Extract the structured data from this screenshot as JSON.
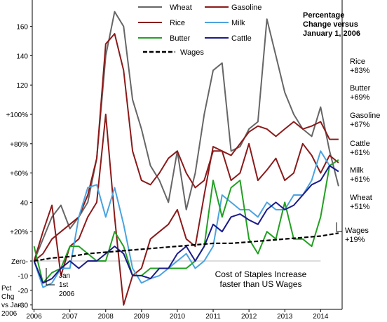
{
  "chart_data": {
    "type": "line",
    "title": "Percentage\nChange versus\nJanuary 1, 2006",
    "subtitle": "Cost of Staples Increase\nfaster than US Wages",
    "ylabel": "Pct\nChg\nvs Jan\n2006",
    "annotation_start": "Jan\n1st\n2006",
    "ylim": [
      -33,
      178
    ],
    "xlim": [
      2005.95,
      2014.6
    ],
    "grid": false,
    "legend_position": "top",
    "x_ticks": [
      {
        "label": "2006",
        "value": 2006.0
      },
      {
        "label": "2007",
        "value": 2007.0
      },
      {
        "label": "2008",
        "value": 2008.0
      },
      {
        "label": "2009",
        "value": 2009.0
      },
      {
        "label": "2010",
        "value": 2010.0
      },
      {
        "label": "2011",
        "value": 2011.0
      },
      {
        "label": "2012",
        "value": 2012.0
      },
      {
        "label": "2013",
        "value": 2013.0
      },
      {
        "label": "2014",
        "value": 2014.0
      }
    ],
    "y_ticks": [
      {
        "label": "160",
        "value": 160
      },
      {
        "label": "140",
        "value": 140
      },
      {
        "label": "120",
        "value": 120
      },
      {
        "label": "+100%",
        "value": 100
      },
      {
        "label": "+80%",
        "value": 80
      },
      {
        "label": "+60%",
        "value": 60
      },
      {
        "label": "40",
        "value": 40
      },
      {
        "label": "+20%",
        "value": 20
      },
      {
        "label": "Zero-",
        "value": 0
      },
      {
        "label": "-10",
        "value": -10
      },
      {
        "label": "-20",
        "value": -20
      },
      {
        "label": "-30",
        "value": -30
      }
    ],
    "series": [
      {
        "name": "Wheat",
        "color": "#666666",
        "dash": false,
        "width": 2,
        "end_label": "Wheat\n+51%",
        "x": [
          2006.0,
          2006.5,
          2006.75,
          2007.0,
          2007.25,
          2007.5,
          2007.75,
          2008.0,
          2008.25,
          2008.5,
          2008.75,
          2009.0,
          2009.25,
          2009.5,
          2009.75,
          2010.0,
          2010.25,
          2010.5,
          2010.75,
          2011.0,
          2011.25,
          2011.5,
          2011.75,
          2012.0,
          2012.25,
          2012.5,
          2012.75,
          2013.0,
          2013.25,
          2013.5,
          2013.75,
          2014.0,
          2014.25,
          2014.5
        ],
        "y": [
          0,
          30,
          38,
          22,
          30,
          40,
          70,
          140,
          170,
          160,
          110,
          90,
          65,
          55,
          40,
          75,
          35,
          60,
          100,
          130,
          135,
          75,
          78,
          90,
          95,
          165,
          140,
          115,
          100,
          90,
          85,
          105,
          75,
          51
        ]
      },
      {
        "name": "Rice",
        "color": "#8b1a1a",
        "dash": false,
        "width": 2,
        "end_label": "Rice\n+83%",
        "x": [
          2006.0,
          2006.25,
          2006.5,
          2006.75,
          2007.0,
          2007.25,
          2007.5,
          2007.75,
          2008.0,
          2008.25,
          2008.5,
          2008.75,
          2009.0,
          2009.25,
          2009.5,
          2009.75,
          2010.0,
          2010.25,
          2010.5,
          2010.75,
          2011.0,
          2011.25,
          2011.5,
          2011.75,
          2012.0,
          2012.25,
          2012.5,
          2012.75,
          2013.0,
          2013.25,
          2013.5,
          2013.75,
          2014.0,
          2014.25,
          2014.5
        ],
        "y": [
          0,
          5,
          15,
          20,
          25,
          30,
          45,
          70,
          148,
          155,
          130,
          75,
          55,
          52,
          60,
          70,
          75,
          60,
          50,
          55,
          75,
          75,
          72,
          80,
          88,
          92,
          90,
          85,
          90,
          95,
          90,
          92,
          95,
          83,
          83
        ]
      },
      {
        "name": "Gasoline",
        "color": "#8b1a1a",
        "dash": false,
        "width": 2,
        "end_label": "Gasoline\n+67%",
        "x": [
          2006.0,
          2006.25,
          2006.5,
          2006.75,
          2007.0,
          2007.25,
          2007.5,
          2007.75,
          2008.0,
          2008.25,
          2008.5,
          2008.75,
          2009.0,
          2009.25,
          2009.5,
          2009.75,
          2010.0,
          2010.25,
          2010.5,
          2010.75,
          2011.0,
          2011.25,
          2011.5,
          2011.75,
          2012.0,
          2012.25,
          2012.5,
          2012.75,
          2013.0,
          2013.25,
          2013.5,
          2013.75,
          2014.0,
          2014.25,
          2014.5
        ],
        "y": [
          0,
          20,
          38,
          -10,
          10,
          15,
          30,
          40,
          100,
          30,
          -30,
          -10,
          -5,
          15,
          20,
          25,
          35,
          15,
          10,
          45,
          78,
          75,
          55,
          60,
          80,
          55,
          62,
          70,
          55,
          60,
          80,
          72,
          60,
          72,
          67
        ]
      },
      {
        "name": "Milk",
        "color": "#4aa3df",
        "dash": false,
        "width": 2,
        "end_label": "Milk\n+61%",
        "x": [
          2006.0,
          2006.25,
          2006.5,
          2006.75,
          2007.0,
          2007.25,
          2007.5,
          2007.75,
          2008.0,
          2008.25,
          2008.5,
          2008.75,
          2009.0,
          2009.25,
          2009.5,
          2009.75,
          2010.0,
          2010.25,
          2010.5,
          2010.75,
          2011.0,
          2011.25,
          2011.5,
          2011.75,
          2012.0,
          2012.25,
          2012.5,
          2012.75,
          2013.0,
          2013.25,
          2013.5,
          2013.75,
          2014.0,
          2014.25,
          2014.5
        ],
        "y": [
          0,
          -18,
          -15,
          -5,
          -5,
          30,
          50,
          52,
          30,
          50,
          25,
          -5,
          -15,
          -12,
          -10,
          -5,
          0,
          5,
          -5,
          0,
          10,
          45,
          40,
          35,
          35,
          30,
          40,
          35,
          35,
          45,
          45,
          55,
          75,
          65,
          61
        ]
      },
      {
        "name": "Butter",
        "color": "#22a022",
        "dash": false,
        "width": 2,
        "end_label": "Butter\n+69%",
        "x": [
          2006.0,
          2006.25,
          2006.5,
          2006.75,
          2007.0,
          2007.25,
          2007.5,
          2007.75,
          2008.0,
          2008.25,
          2008.5,
          2008.75,
          2009.0,
          2009.25,
          2009.5,
          2009.75,
          2010.0,
          2010.25,
          2010.5,
          2010.75,
          2011.0,
          2011.25,
          2011.5,
          2011.75,
          2012.0,
          2012.25,
          2012.5,
          2012.75,
          2013.0,
          2013.25,
          2013.5,
          2013.75,
          2014.0,
          2014.25,
          2014.5
        ],
        "y": [
          10,
          -15,
          -8,
          -5,
          10,
          10,
          5,
          0,
          0,
          20,
          10,
          -10,
          -10,
          -5,
          -5,
          -5,
          -5,
          -5,
          0,
          10,
          55,
          30,
          50,
          55,
          15,
          5,
          20,
          15,
          40,
          15,
          15,
          10,
          30,
          65,
          69
        ]
      },
      {
        "name": "Cattle",
        "color": "#1a1a8b",
        "dash": false,
        "width": 2,
        "end_label": "Cattle\n+61%",
        "x": [
          2006.0,
          2006.25,
          2006.5,
          2006.75,
          2007.0,
          2007.25,
          2007.5,
          2007.75,
          2008.0,
          2008.25,
          2008.5,
          2008.75,
          2009.0,
          2009.25,
          2009.5,
          2009.75,
          2010.0,
          2010.25,
          2010.5,
          2010.75,
          2011.0,
          2011.25,
          2011.5,
          2011.75,
          2012.0,
          2012.25,
          2012.5,
          2012.75,
          2013.0,
          2013.25,
          2013.5,
          2013.75,
          2014.0,
          2014.25,
          2014.5
        ],
        "y": [
          0,
          -15,
          -12,
          -5,
          0,
          -5,
          0,
          0,
          5,
          10,
          5,
          -10,
          -10,
          -12,
          -5,
          -5,
          5,
          10,
          0,
          10,
          25,
          20,
          30,
          32,
          28,
          25,
          35,
          40,
          35,
          38,
          45,
          52,
          55,
          65,
          61
        ]
      },
      {
        "name": "Wages",
        "color": "#000000",
        "dash": true,
        "width": 2.2,
        "end_label": "Wages\n+19%",
        "x": [
          2006.0,
          2006.5,
          2007.0,
          2007.5,
          2008.0,
          2008.5,
          2009.0,
          2009.5,
          2010.0,
          2010.5,
          2011.0,
          2011.5,
          2012.0,
          2012.5,
          2013.0,
          2013.5,
          2014.0,
          2014.5
        ],
        "y": [
          0,
          2,
          3,
          5,
          6,
          7,
          8,
          9,
          10,
          11,
          12,
          12,
          13,
          14,
          15,
          16,
          17,
          19
        ]
      }
    ]
  }
}
